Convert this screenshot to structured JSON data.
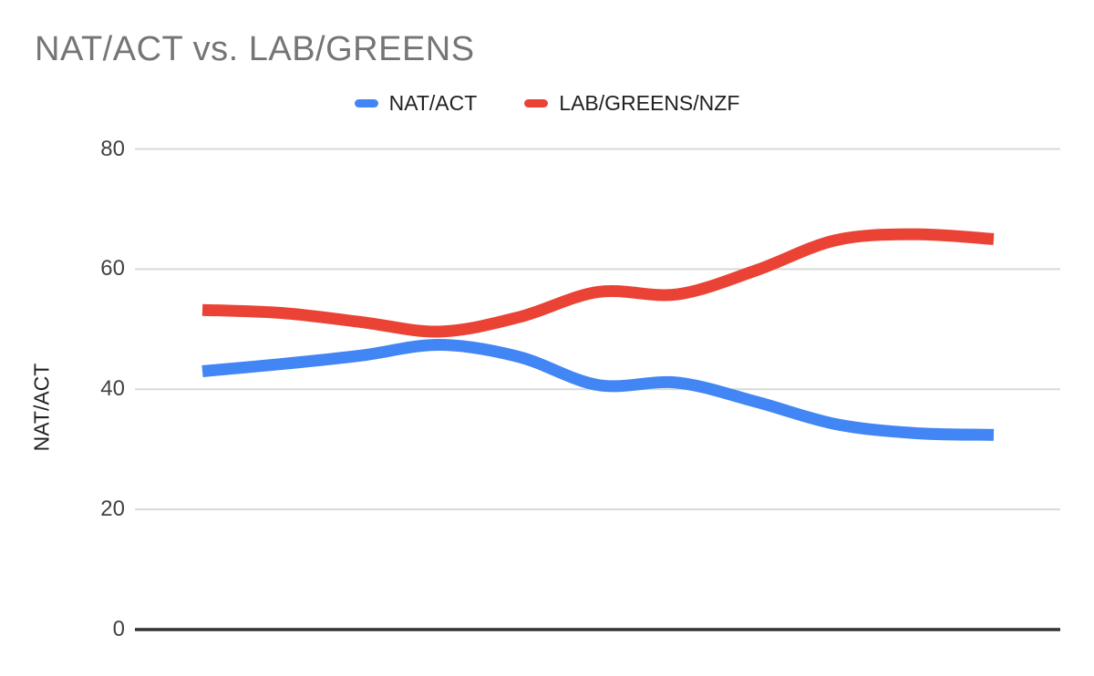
{
  "title": "NAT/ACT vs. LAB/GREENS",
  "legend": [
    {
      "label": "NAT/ACT",
      "color": "#4285F4"
    },
    {
      "label": "LAB/GREENS/NZF",
      "color": "#EA4335"
    }
  ],
  "y_axis": {
    "title": "NAT/ACT",
    "ticks": [
      "80",
      "60",
      "40",
      "20",
      "0"
    ]
  },
  "colors": {
    "title_text": "#757575",
    "legend_text": "#212121",
    "tick_text": "#424242",
    "gridline": "#d9d9d9",
    "baseline": "#333333",
    "series_blue": "#4285F4",
    "series_red": "#EA4335",
    "background": "#ffffff"
  },
  "chart_data": {
    "type": "line",
    "smooth": true,
    "title": "NAT/ACT vs. LAB/GREENS",
    "ylabel": "NAT/ACT",
    "xlabel": "",
    "x": [
      1,
      2,
      3,
      4,
      5,
      6,
      7,
      8,
      9,
      10,
      11
    ],
    "x_axis_labels_visible": false,
    "series": [
      {
        "name": "NAT/ACT",
        "color": "#4285F4",
        "values": [
          43.0,
          44.2,
          45.6,
          47.4,
          45.4,
          40.7,
          41.1,
          37.9,
          34.2,
          32.7,
          32.4
        ]
      },
      {
        "name": "LAB/GREENS/NZF",
        "color": "#EA4335",
        "values": [
          53.2,
          52.7,
          51.2,
          49.6,
          52.0,
          56.2,
          55.8,
          59.8,
          64.8,
          65.8,
          65.0
        ]
      }
    ],
    "ylim": [
      0,
      80
    ],
    "y_ticks": [
      0,
      20,
      40,
      60,
      80
    ],
    "grid": true,
    "legend_position": "top"
  }
}
